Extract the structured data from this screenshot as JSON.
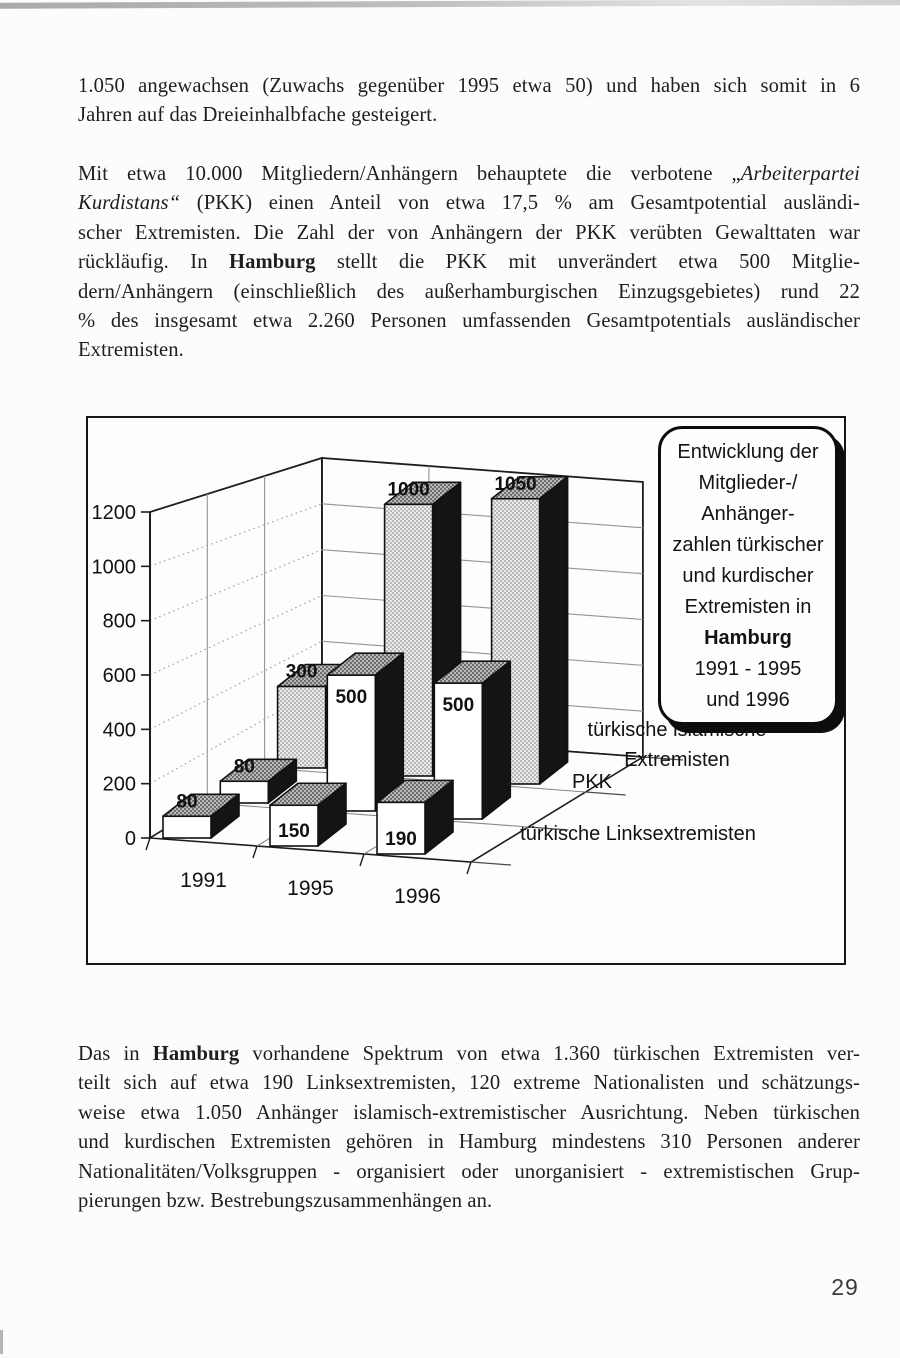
{
  "page": {
    "number": "29"
  },
  "paragraphs": {
    "p1": {
      "lines": [
        [
          {
            "t": "1.050 angewachsen (Zuwachs gegenüber 1995 etwa 50) und haben sich somit in 6"
          }
        ],
        [
          {
            "t": "Jahren auf das Dreieinhalbfache gesteigert."
          }
        ]
      ]
    },
    "p2": {
      "lines": [
        [
          {
            "t": "Mit etwa 10.000 Mitgliedern/Anhängern behauptete die verbotene „"
          },
          {
            "t": "Arbeiterpartei",
            "i": true
          }
        ],
        [
          {
            "t": "Kurdistans“",
            "i": true
          },
          {
            "t": " (PKK) einen Anteil von etwa 17,5 % am Gesamtpotential ausländi-"
          }
        ],
        [
          {
            "t": "scher Extremisten. Die Zahl der von Anhängern der PKK verübten Gewalttaten war"
          }
        ],
        [
          {
            "t": "rückläufig. In "
          },
          {
            "t": "Hamburg",
            "b": true
          },
          {
            "t": " stellt die PKK mit unverändert etwa 500 Mitglie-"
          }
        ],
        [
          {
            "t": "dern/Anhängern (einschließlich des außerhamburgischen Einzugsgebietes) rund 22"
          }
        ],
        [
          {
            "t": "% des insgesamt etwa 2.260 Personen umfassenden Gesamtpotentials ausländischer"
          }
        ],
        [
          {
            "t": "Extremisten."
          }
        ]
      ]
    },
    "p3": {
      "lines": [
        [
          {
            "t": "Das in "
          },
          {
            "t": "Hamburg",
            "b": true
          },
          {
            "t": " vorhandene Spektrum von etwa 1.360 türkischen Extremisten ver-"
          }
        ],
        [
          {
            "t": "teilt sich auf etwa 190 Linksextremisten, 120 extreme Nationalisten und schätzungs-"
          }
        ],
        [
          {
            "t": "weise etwa 1.050 Anhänger islamisch-extremistischer Ausrichtung. Neben türkischen"
          }
        ],
        [
          {
            "t": "und kurdischen Extremisten gehören in Hamburg mindestens 310 Personen anderer"
          }
        ],
        [
          {
            "t": "Nationalitäten/Volksgruppen - organisiert oder unorganisiert - extremistischen Grup-"
          }
        ],
        [
          {
            "t": "pierungen bzw. Bestrebungszusammenhängen an."
          }
        ]
      ]
    }
  },
  "chart_data": {
    "type": "bar",
    "style": "3d-column",
    "title": "Entwicklung der Mitglieder-/Anhängerzahlen türkischer und kurdischer Extremisten in Hamburg 1991 - 1995 und 1996",
    "title_lines": [
      [
        {
          "t": "Entwicklung der"
        }
      ],
      [
        {
          "t": "Mitglieder-/"
        }
      ],
      [
        {
          "t": "Anhänger-"
        }
      ],
      [
        {
          "t": "zahlen türkischer"
        }
      ],
      [
        {
          "t": "und kurdischer"
        }
      ],
      [
        {
          "t": "Extremisten in"
        }
      ],
      [
        {
          "t": "Hamburg",
          "b": true
        }
      ],
      [
        {
          "t": "1991 - 1995"
        }
      ],
      [
        {
          "t": "und 1996"
        }
      ]
    ],
    "categories": [
      "1991",
      "1995",
      "1996"
    ],
    "series": [
      {
        "name": "türkische Linksextremisten",
        "name_lines": [
          "türkische Linksextremisten"
        ],
        "values": [
          80,
          150,
          190
        ],
        "label_pos": [
          "above",
          "inside",
          "inside"
        ]
      },
      {
        "name": "PKK",
        "name_lines": [
          "PKK"
        ],
        "values": [
          80,
          500,
          500
        ],
        "label_pos": [
          "above",
          "inside-top",
          "inside-top"
        ]
      },
      {
        "name": "türkische islamische Extremisten",
        "name_lines": [
          "türkische islamische",
          "Extremisten"
        ],
        "values": [
          300,
          1000,
          1050
        ],
        "label_pos": [
          "above",
          "above",
          "above"
        ]
      }
    ],
    "ylim": [
      0,
      1200
    ],
    "yticks": [
      0,
      200,
      400,
      600,
      800,
      1000,
      1200
    ],
    "grid": true,
    "legend_position": "top-right"
  }
}
